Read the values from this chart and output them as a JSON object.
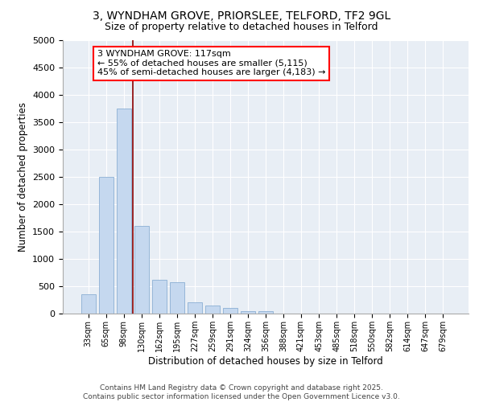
{
  "title_line1": "3, WYNDHAM GROVE, PRIORSLEE, TELFORD, TF2 9GL",
  "title_line2": "Size of property relative to detached houses in Telford",
  "xlabel": "Distribution of detached houses by size in Telford",
  "ylabel": "Number of detached properties",
  "categories": [
    "33sqm",
    "65sqm",
    "98sqm",
    "130sqm",
    "162sqm",
    "195sqm",
    "227sqm",
    "259sqm",
    "291sqm",
    "324sqm",
    "356sqm",
    "388sqm",
    "421sqm",
    "453sqm",
    "485sqm",
    "518sqm",
    "550sqm",
    "582sqm",
    "614sqm",
    "647sqm",
    "679sqm"
  ],
  "values": [
    350,
    2500,
    3750,
    1600,
    620,
    580,
    200,
    150,
    100,
    50,
    50,
    0,
    0,
    0,
    0,
    0,
    0,
    0,
    0,
    0,
    0
  ],
  "bar_color": "#c5d8ef",
  "bar_edge_color": "#8bafd4",
  "vline_color": "#8b0000",
  "ylim": [
    0,
    5000
  ],
  "yticks": [
    0,
    500,
    1000,
    1500,
    2000,
    2500,
    3000,
    3500,
    4000,
    4500,
    5000
  ],
  "annotation_text": "3 WYNDHAM GROVE: 117sqm\n← 55% of detached houses are smaller (5,115)\n45% of semi-detached houses are larger (4,183) →",
  "footer_line1": "Contains HM Land Registry data © Crown copyright and database right 2025.",
  "footer_line2": "Contains public sector information licensed under the Open Government Licence v3.0.",
  "bg_color": "#e8eef5",
  "grid_color": "white",
  "title_fontsize": 10,
  "subtitle_fontsize": 9,
  "tick_fontsize": 7,
  "label_fontsize": 8.5,
  "annotation_fontsize": 8,
  "footer_fontsize": 6.5
}
